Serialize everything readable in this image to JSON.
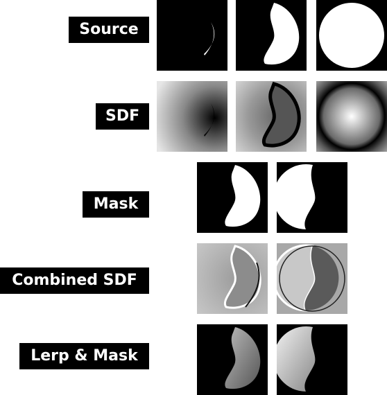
{
  "rows": [
    {
      "label": "Source"
    },
    {
      "label": "SDF"
    },
    {
      "label": "Mask"
    },
    {
      "label": "Combined SDF"
    },
    {
      "label": "Lerp & Mask"
    }
  ]
}
